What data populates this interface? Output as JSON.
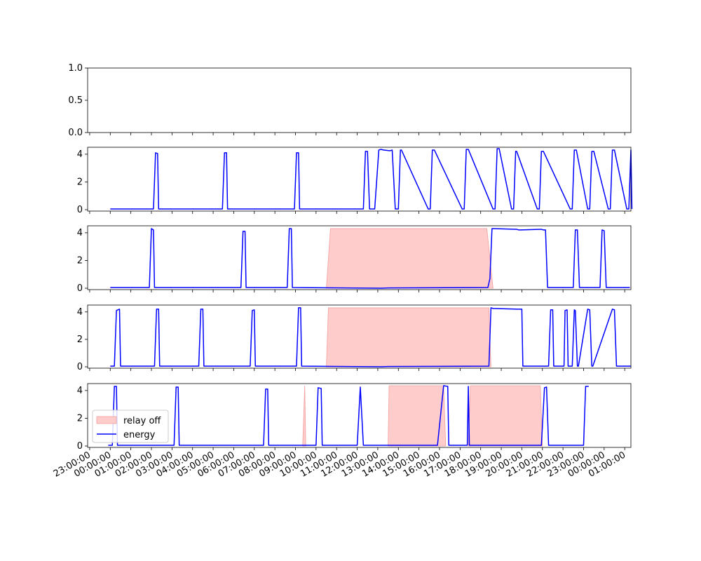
{
  "chart_data": {
    "type": "line",
    "x_tick_labels": [
      "23:00:00",
      "00:00:00",
      "01:00:00",
      "02:00:00",
      "03:00:00",
      "04:00:00",
      "05:00:00",
      "06:00:00",
      "07:00:00",
      "08:00:00",
      "09:00:00",
      "10:00:00",
      "11:00:00",
      "12:00:00",
      "13:00:00",
      "14:00:00",
      "15:00:00",
      "16:00:00",
      "17:00:00",
      "18:00:00",
      "19:00:00",
      "20:00:00",
      "21:00:00",
      "22:00:00",
      "23:00:00",
      "00:00:00",
      "01:00:00"
    ],
    "x_unit": "hours",
    "xlim": [
      -0.1,
      26.3
    ],
    "legend": {
      "location": "lower-left",
      "entries": [
        {
          "label": "relay off",
          "kind": "fill",
          "color": "#ffcccc"
        },
        {
          "label": "energy",
          "kind": "line",
          "color": "#0000ff"
        }
      ]
    },
    "panels": [
      {
        "ylim": [
          0,
          1
        ],
        "y_ticks": [
          0,
          0.5,
          1
        ],
        "y_tick_labels": [
          "0.0",
          "0.5",
          "1.0"
        ],
        "series": [],
        "relay_off_intervals": []
      },
      {
        "ylim": [
          -0.1,
          4.5
        ],
        "y_ticks": [
          0,
          2,
          4
        ],
        "y_tick_labels": [
          "0",
          "2",
          "4"
        ],
        "series": [
          {
            "x": [
              1,
              3.1,
              3.2,
              3.3,
              3.35,
              6.45,
              6.55,
              6.65,
              6.7,
              9.95,
              10.05,
              10.15,
              10.2,
              13.3,
              13.4,
              13.5,
              13.6,
              13.85,
              14.05,
              14.15,
              14.3,
              14.6,
              14.7,
              14.85,
              15,
              15.1,
              15.15,
              16.45,
              16.55,
              16.65,
              16.75,
              18.1,
              18.2,
              18.3,
              18.4,
              19.6,
              19.7,
              19.8,
              19.9,
              20.5,
              20.6,
              20.7,
              20.75,
              21.75,
              21.85,
              21.95,
              22.05,
              23.35,
              23.45,
              23.55,
              23.65,
              24.2,
              24.3,
              24.4,
              24.5,
              25.2,
              25.3,
              25.4,
              25.5,
              26.1,
              26.2,
              26.3,
              26.35
            ],
            "y": [
              0.05,
              0.05,
              4.1,
              4.05,
              0.05,
              0.05,
              4.1,
              4.1,
              0.05,
              0.05,
              4.1,
              4.1,
              0.05,
              0.05,
              4.2,
              4.2,
              0.05,
              0.05,
              4.3,
              4.35,
              4.3,
              4.25,
              4.3,
              0.05,
              0.05,
              4.3,
              4.3,
              0.05,
              0.05,
              4.3,
              4.3,
              0.05,
              0.05,
              4.35,
              4.35,
              0.05,
              0.05,
              4.4,
              4.4,
              0.05,
              0.05,
              4.2,
              4.2,
              0.05,
              0.05,
              4.2,
              4.2,
              0.05,
              0.05,
              4.3,
              4.3,
              0.05,
              0.05,
              4.2,
              4.2,
              0.05,
              0.05,
              4.3,
              4.3,
              0.05,
              0.05,
              4.3,
              0.05
            ]
          }
        ],
        "relay_off_intervals": []
      },
      {
        "ylim": [
          -0.1,
          4.5
        ],
        "y_ticks": [
          0,
          2,
          4
        ],
        "y_tick_labels": [
          "0",
          "2",
          "4"
        ],
        "series": [
          {
            "x": [
              1,
              2.9,
              3,
              3.1,
              3.15,
              7.35,
              7.45,
              7.55,
              7.6,
              9.6,
              9.7,
              9.8,
              9.85,
              14.2,
              14.5,
              19.35,
              19.45,
              19.55,
              19.6,
              20.75,
              20.85,
              20.95,
              21.95,
              22.05,
              22.15,
              22.25,
              23.5,
              23.6,
              23.7,
              23.8,
              24.8,
              24.9,
              25,
              25.1,
              26.25
            ],
            "y": [
              0.05,
              0.05,
              4.3,
              4.2,
              0.05,
              0.05,
              4.1,
              4.1,
              0.05,
              0.05,
              4.3,
              4.3,
              0.05,
              0.0,
              0.02,
              0.05,
              0.7,
              4.3,
              4.3,
              4.25,
              4.2,
              4.2,
              4.25,
              4.2,
              4.2,
              0.05,
              0.05,
              4.2,
              4.2,
              0.05,
              0.05,
              4.2,
              4.15,
              0.05,
              0.05
            ]
          }
        ],
        "relay_off_intervals": [
          {
            "x": [
              11.5,
              11.7,
              19.3,
              19.6
            ],
            "top": [
              0,
              4.3,
              4.3,
              0
            ]
          }
        ]
      },
      {
        "ylim": [
          -0.1,
          4.5
        ],
        "y_ticks": [
          0,
          2,
          4
        ],
        "y_tick_labels": [
          "0",
          "2",
          "4"
        ],
        "series": [
          {
            "x": [
              1,
              1.2,
              1.3,
              1.45,
              1.5,
              3.15,
              3.25,
              3.35,
              3.4,
              5.3,
              5.4,
              5.5,
              5.55,
              7.8,
              7.9,
              8,
              8.05,
              10.05,
              10.15,
              10.25,
              10.3,
              14.2,
              14.5,
              19.4,
              19.5,
              19.6,
              20.8,
              21,
              21.05,
              22.3,
              22.4,
              22.5,
              22.55,
              23.05,
              23.1,
              23.2,
              23.25,
              23.45,
              23.55,
              23.6,
              23.7,
              23.75,
              24.2,
              24.3,
              24.4,
              24.45,
              25.4,
              25.5,
              25.6,
              25.65,
              26.3
            ],
            "y": [
              0.05,
              0.05,
              4.1,
              4.2,
              0.05,
              0.05,
              4.2,
              4.2,
              0.05,
              0.05,
              4.2,
              4.2,
              0.05,
              0.05,
              4.1,
              4.15,
              0.05,
              0.05,
              4.3,
              4.3,
              0.05,
              0.0,
              0.02,
              0.05,
              4.3,
              4.25,
              4.2,
              4.2,
              0.05,
              0.05,
              4.15,
              4.15,
              0.05,
              0.05,
              4.1,
              4.15,
              0.05,
              0.05,
              4.15,
              4.1,
              0.05,
              0.05,
              4.2,
              4.15,
              0.05,
              0.05,
              4.2,
              4.15,
              0.05,
              0.05,
              0.05
            ]
          }
        ],
        "relay_off_intervals": [
          {
            "x": [
              11.5,
              11.6,
              19.4,
              19.5
            ],
            "top": [
              0,
              4.3,
              4.3,
              0
            ]
          }
        ]
      },
      {
        "ylim": [
          -0.1,
          4.5
        ],
        "y_ticks": [
          0,
          2,
          4
        ],
        "y_tick_labels": [
          "0",
          "2",
          "4"
        ],
        "series": [
          {
            "x": [
              0.9,
              1.1,
              1.2,
              1.3,
              1.35,
              4.1,
              4.2,
              4.3,
              4.35,
              8.45,
              8.55,
              8.65,
              8.7,
              11.0,
              11.1,
              11.25,
              11.3,
              13.0,
              13.15,
              13.3,
              16.9,
              17.2,
              17.4,
              17.45,
              18.35,
              18.4,
              18.45,
              21.95,
              22.1,
              22.2,
              22.3,
              24.0,
              24.1,
              24.15,
              24.25
            ],
            "y": [
              0.05,
              0.05,
              4.3,
              4.3,
              0.05,
              0.05,
              4.25,
              4.25,
              0.05,
              0.05,
              4.1,
              4.1,
              0.05,
              0.05,
              4.2,
              4.15,
              0.05,
              0.05,
              4.25,
              0.05,
              0.05,
              4.35,
              4.3,
              0.05,
              0.05,
              4.3,
              0.05,
              0.05,
              4.2,
              4.25,
              0.05,
              0.05,
              4.3,
              4.3,
              4.3
            ]
          }
        ],
        "relay_off_intervals": [
          {
            "x": [
              10.35,
              10.45,
              10.5
            ],
            "top": [
              0,
              4.35,
              0
            ]
          },
          {
            "x": [
              14.5,
              14.55,
              17.2,
              17.3
            ],
            "top": [
              0,
              4.35,
              4.35,
              0
            ]
          },
          {
            "x": [
              18.4,
              18.5,
              21.9,
              22.0
            ],
            "top": [
              0,
              4.35,
              4.35,
              0
            ]
          }
        ]
      }
    ]
  }
}
